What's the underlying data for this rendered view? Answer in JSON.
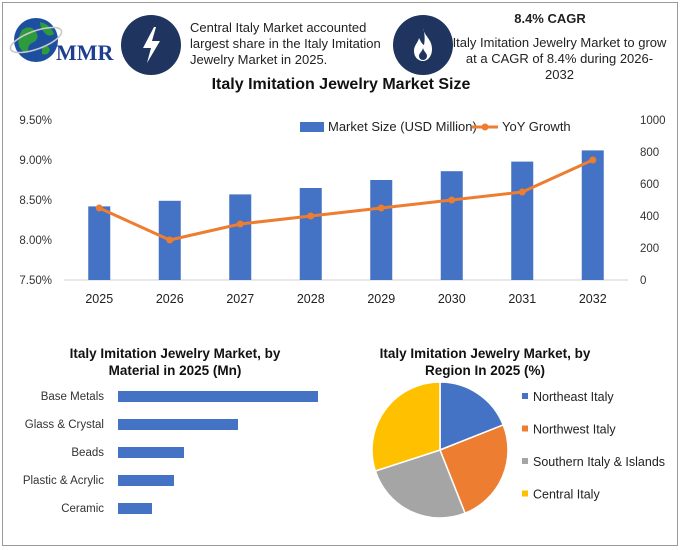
{
  "header": {
    "logo_text": "MMR",
    "share_text": "Central Italy Market accounted largest share in the Italy Imitation Jewelry Market in 2025.",
    "cagr_title": "8.4% CAGR",
    "cagr_text": "Italy Imitation Jewelry Market to grow at a CAGR of 8.4% during 2026-2032",
    "icons": [
      "globe-icon",
      "lightning-icon",
      "flame-icon"
    ]
  },
  "chart_data": [
    {
      "type": "bar",
      "title": "Italy Imitation Jewelry Market Size",
      "categories": [
        "2025",
        "2026",
        "2027",
        "2028",
        "2029",
        "2030",
        "2031",
        "2032"
      ],
      "series": [
        {
          "name": "Market Size (USD Million)",
          "type": "bar",
          "axis": "left",
          "values": [
            8.42,
            8.49,
            8.57,
            8.65,
            8.75,
            8.86,
            8.98,
            9.12
          ],
          "color": "#4472c4"
        },
        {
          "name": "YoY Growth",
          "type": "line",
          "axis": "right",
          "values": [
            450,
            250,
            350,
            400,
            450,
            500,
            550,
            750
          ],
          "color": "#ed7d31"
        }
      ],
      "left_axis": {
        "ylim": [
          7.5,
          9.5
        ],
        "ticks": [
          "7.50%",
          "8.00%",
          "8.50%",
          "9.00%",
          "9.50%"
        ]
      },
      "right_axis": {
        "ylim": [
          0,
          1000
        ],
        "ticks": [
          "0",
          "200",
          "400",
          "600",
          "800",
          "1000"
        ]
      },
      "legend": "top-right"
    },
    {
      "type": "bar",
      "orientation": "horizontal",
      "title": "Italy Imitation Jewelry Market, by Material in 2025 (Mn)",
      "title_lines": [
        "Italy Imitation Jewelry Market, by",
        "Material  in 2025 (Mn)"
      ],
      "categories": [
        "Base Metals",
        "Glass & Crystal",
        "Beads",
        "Plastic & Acrylic",
        "Ceramic"
      ],
      "values": [
        100,
        60,
        33,
        28,
        17
      ],
      "color": "#4472c4"
    },
    {
      "type": "pie",
      "title": "Italy Imitation Jewelry Market, by Region In 2025 (%)",
      "title_lines": [
        "Italy Imitation Jewelry Market, by",
        "Region In 2025 (%)"
      ],
      "labels": [
        "Northeast Italy",
        "Northwest Italy",
        "Southern Italy & Islands",
        "Central Italy"
      ],
      "values": [
        19,
        25,
        26,
        30
      ],
      "colors": [
        "#4472c4",
        "#ed7d31",
        "#a5a5a5",
        "#ffc000"
      ],
      "legend": "right"
    }
  ]
}
